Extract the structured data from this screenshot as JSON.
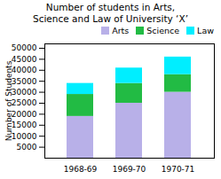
{
  "chart_data": {
    "type": "bar",
    "stacked": true,
    "title": "Number of students in Arts,\nScience and Law of University ‘X’",
    "ylabel": "Number of Students",
    "categories": [
      "1968-69",
      "1969-70",
      "1970-71"
    ],
    "series": [
      {
        "name": "Arts",
        "color": "#b8b0e8",
        "values": [
          19000,
          25000,
          30000
        ]
      },
      {
        "name": "Science",
        "color": "#22bb44",
        "values": [
          10000,
          9000,
          8000
        ]
      },
      {
        "name": "Law",
        "color": "#00eeff",
        "values": [
          5000,
          7000,
          8000
        ]
      }
    ],
    "ylim": [
      0,
      52000
    ],
    "yticks": [
      5000,
      10000,
      15000,
      20000,
      25000,
      30000,
      35000,
      40000,
      45000,
      50000
    ],
    "grid": false,
    "legend": "upper right"
  }
}
